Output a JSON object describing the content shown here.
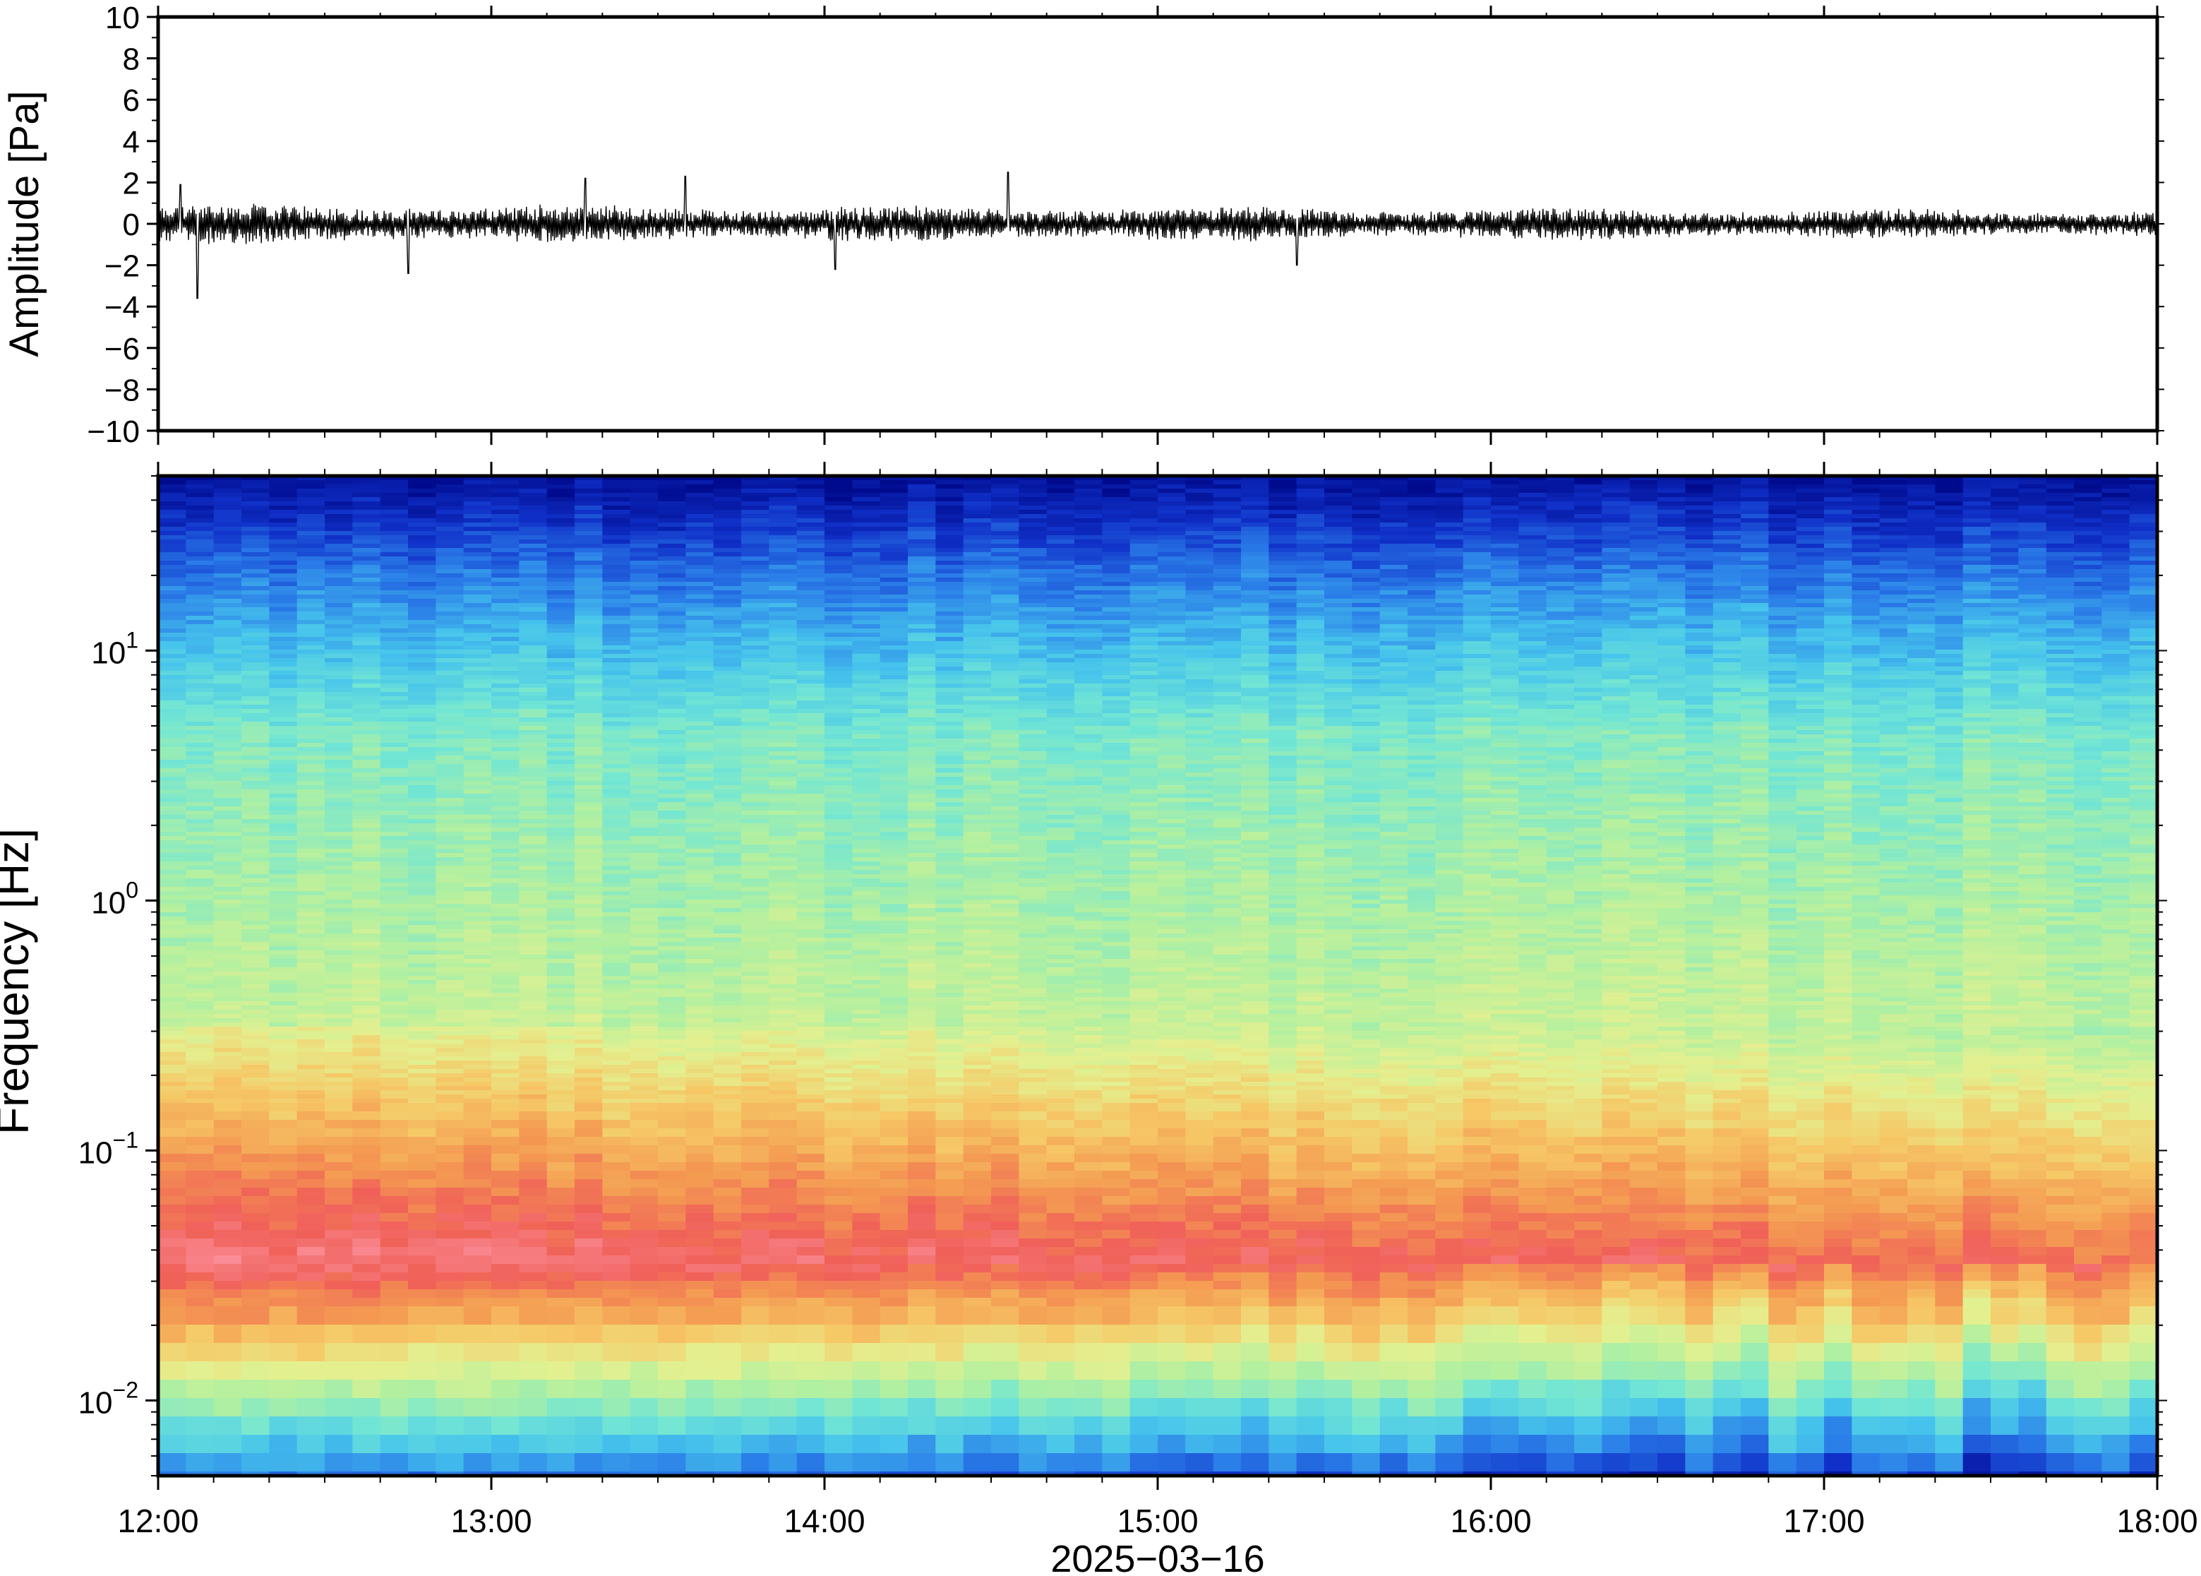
{
  "chart_data": [
    {
      "type": "line",
      "ylabel": "Amplitude [Pa]",
      "ylim": [
        -10,
        10
      ],
      "yticks": [
        -10,
        -8,
        -6,
        -4,
        -2,
        0,
        2,
        4,
        6,
        8,
        10
      ],
      "ytick_labels": [
        "−10",
        "−8",
        "−6",
        "−4",
        "−2",
        "0",
        "2",
        "4",
        "6",
        "8",
        "10"
      ],
      "x_range": [
        "12:00",
        "18:00"
      ],
      "series": [
        {
          "color": "#000000",
          "typical_amplitude_pa": 0.8,
          "peaks": [
            {
              "x": "12:07",
              "y": -3.6
            },
            {
              "x": "12:04",
              "y": 1.9
            },
            {
              "x": "13:17",
              "y": 2.2
            },
            {
              "x": "13:35",
              "y": 2.3
            },
            {
              "x": "14:33",
              "y": 2.5
            },
            {
              "x": "12:45",
              "y": -2.4
            },
            {
              "x": "14:02",
              "y": -2.2
            },
            {
              "x": "15:25",
              "y": -2.0
            }
          ]
        }
      ],
      "grid": false
    },
    {
      "type": "heatmap",
      "ylabel": "Frequency [Hz]",
      "xlabel": "2025−03−16",
      "y_scale": "log",
      "ylim": [
        0.005,
        50
      ],
      "ytick_labels": [
        {
          "base": "10",
          "exp": "1",
          "value": 10
        },
        {
          "base": "10",
          "exp": "0",
          "value": 1
        },
        {
          "base": "10",
          "exp": "−1",
          "value": 0.1
        },
        {
          "base": "10",
          "exp": "−2",
          "value": 0.01
        }
      ],
      "x_ticks": [
        "12:00",
        "13:00",
        "14:00",
        "15:00",
        "16:00",
        "17:00",
        "18:00"
      ],
      "colormap": [
        "#000a8c",
        "#1030c8",
        "#2a7ce8",
        "#46c4ec",
        "#72e6d4",
        "#b2f0a0",
        "#e4f090",
        "#f6c866",
        "#f49a52",
        "#f06058",
        "#fa8c96"
      ],
      "grid": false
    }
  ]
}
